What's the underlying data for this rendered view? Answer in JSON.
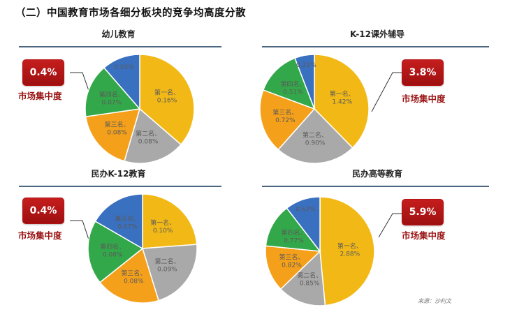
{
  "heading": "（二）中国教育市场各细分板块的竞争均高度分散",
  "badge_caption": "市场集中度",
  "source": "来源：沙利文",
  "colors": {
    "yellow": "#f2b916",
    "gray": "#a9a9a9",
    "orange": "#f5a01a",
    "green": "#33a84a",
    "blue": "#3a70c0",
    "badge": "#b71818"
  },
  "chart_data": [
    {
      "type": "pie",
      "title": "幼儿教育",
      "concentration": "0.4%",
      "slices": [
        {
          "name": "第一名",
          "label": "第一名、\n0.16%",
          "value": 0.16,
          "color": "yellow"
        },
        {
          "name": "第二名",
          "label": "第二名、\n0.08%",
          "value": 0.08,
          "color": "gray"
        },
        {
          "name": "第三名",
          "label": "第三名、\n0.08%",
          "value": 0.08,
          "color": "orange"
        },
        {
          "name": "第四名",
          "label": "第四名、\n0.07%",
          "value": 0.07,
          "color": "green"
        },
        {
          "name": "第五名",
          "label": "0.05%",
          "value": 0.05,
          "color": "blue"
        }
      ]
    },
    {
      "type": "pie",
      "title": "K-12课外辅导",
      "concentration": "3.8%",
      "slices": [
        {
          "name": "第一名",
          "label": "第一名、\n1.42%",
          "value": 1.42,
          "color": "yellow"
        },
        {
          "name": "第二名",
          "label": "第二名、\n0.90%",
          "value": 0.9,
          "color": "gray"
        },
        {
          "name": "第三名",
          "label": "第三名、\n0.72%",
          "value": 0.72,
          "color": "orange"
        },
        {
          "name": "第四名",
          "label": "第四名、\n0.51%",
          "value": 0.51,
          "color": "green"
        },
        {
          "name": "第五名",
          "label": "0.22%",
          "value": 0.22,
          "color": "blue"
        }
      ]
    },
    {
      "type": "pie",
      "title": "民办K-12教育",
      "concentration": "0.4%",
      "slices": [
        {
          "name": "第一名",
          "label": "第一名、\n0.10%",
          "value": 0.1,
          "color": "yellow"
        },
        {
          "name": "第二名",
          "label": "第二名、\n0.09%",
          "value": 0.09,
          "color": "gray"
        },
        {
          "name": "第三名",
          "label": "第三名、\n0.08%",
          "value": 0.08,
          "color": "orange"
        },
        {
          "name": "第四名",
          "label": "第四名、\n0.08%",
          "value": 0.08,
          "color": "green"
        },
        {
          "name": "第五名",
          "label": "第五名、\n0.07%",
          "value": 0.07,
          "color": "blue"
        }
      ]
    },
    {
      "type": "pie",
      "title": "民办高等教育",
      "concentration": "5.9%",
      "slices": [
        {
          "name": "第一名",
          "label": "第一名、\n2.88%",
          "value": 2.88,
          "color": "yellow"
        },
        {
          "name": "第二名",
          "label": "第二名、\n0.85%",
          "value": 0.85,
          "color": "gray"
        },
        {
          "name": "第三名",
          "label": "第三名、\n0.82%",
          "value": 0.82,
          "color": "orange"
        },
        {
          "name": "第四名",
          "label": "第四名、\n0.77%",
          "value": 0.77,
          "color": "green"
        },
        {
          "name": "第五名",
          "label": "0.62%",
          "value": 0.62,
          "color": "blue"
        }
      ]
    }
  ]
}
